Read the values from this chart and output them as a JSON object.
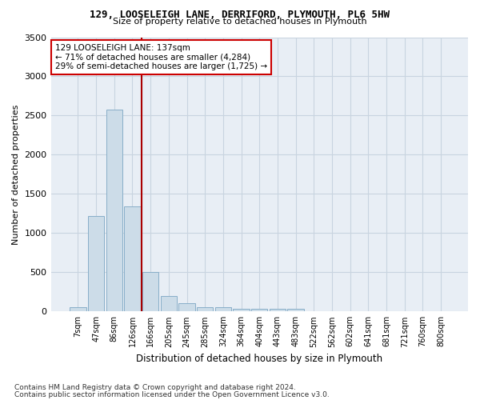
{
  "title1": "129, LOOSELEIGH LANE, DERRIFORD, PLYMOUTH, PL6 5HW",
  "title2": "Size of property relative to detached houses in Plymouth",
  "xlabel": "Distribution of detached houses by size in Plymouth",
  "ylabel": "Number of detached properties",
  "footer1": "Contains HM Land Registry data © Crown copyright and database right 2024.",
  "footer2": "Contains public sector information licensed under the Open Government Licence v3.0.",
  "bin_labels": [
    "7sqm",
    "47sqm",
    "86sqm",
    "126sqm",
    "166sqm",
    "205sqm",
    "245sqm",
    "285sqm",
    "324sqm",
    "364sqm",
    "404sqm",
    "443sqm",
    "483sqm",
    "522sqm",
    "562sqm",
    "602sqm",
    "641sqm",
    "681sqm",
    "721sqm",
    "760sqm",
    "800sqm"
  ],
  "bar_values": [
    50,
    1220,
    2580,
    1340,
    500,
    195,
    105,
    55,
    50,
    30,
    30,
    30,
    30,
    0,
    0,
    0,
    0,
    0,
    0,
    0,
    0
  ],
  "bar_color": "#ccdce8",
  "bar_edgecolor": "#88aec8",
  "grid_color": "#c8d4e0",
  "background_color": "#e8eef5",
  "vline_color": "#aa0000",
  "annotation_line1": "129 LOOSELEIGH LANE: 137sqm",
  "annotation_line2": "← 71% of detached houses are smaller (4,284)",
  "annotation_line3": "29% of semi-detached houses are larger (1,725) →",
  "annotation_box_color": "#cc0000",
  "ylim": [
    0,
    3500
  ],
  "yticks": [
    0,
    500,
    1000,
    1500,
    2000,
    2500,
    3000,
    3500
  ]
}
